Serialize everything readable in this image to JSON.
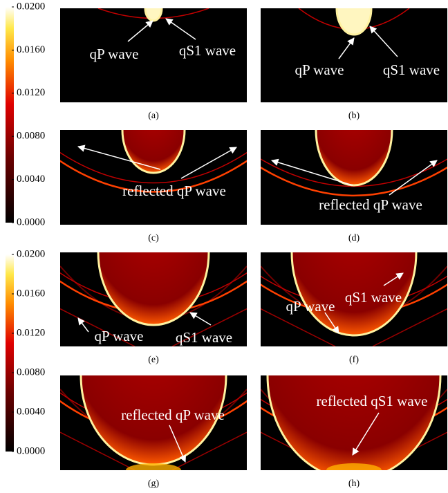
{
  "colorbars": [
    {
      "clim": [
        0,
        0.02
      ],
      "ticks": [
        {
          "value": 0.02,
          "label": "0.0200"
        },
        {
          "value": 0.016,
          "label": "0.0160"
        },
        {
          "value": 0.012,
          "label": "0.0120"
        },
        {
          "value": 0.008,
          "label": "0.0080"
        },
        {
          "value": 0.004,
          "label": "0.0040"
        },
        {
          "value": 0,
          "label": "0.0000"
        }
      ]
    },
    {
      "clim": [
        0,
        0.02
      ],
      "ticks": [
        {
          "value": 0.02,
          "label": "0.0200"
        },
        {
          "value": 0.016,
          "label": "0.0160"
        },
        {
          "value": 0.012,
          "label": "0.0120"
        },
        {
          "value": 0.008,
          "label": "0.0080"
        },
        {
          "value": 0.004,
          "label": "0.0040"
        },
        {
          "value": 0,
          "label": "0.0000"
        }
      ]
    }
  ],
  "panels": [
    {
      "caption": "(a)",
      "annotations": [
        "qP wave",
        "qS1 wave"
      ]
    },
    {
      "caption": "(b)",
      "annotations": [
        "qP wave",
        "qS1 wave"
      ]
    },
    {
      "caption": "(c)",
      "annotations": [
        "reflected qP wave"
      ]
    },
    {
      "caption": "(d)",
      "annotations": [
        "reflected qP wave"
      ]
    },
    {
      "caption": "(e)",
      "annotations": [
        "qP wave",
        "qS1 wave"
      ]
    },
    {
      "caption": "(f)",
      "annotations": [
        "qP wave",
        "qS1 wave"
      ]
    },
    {
      "caption": "(g)",
      "annotations": [
        "reflected qP wave"
      ]
    },
    {
      "caption": "(h)",
      "annotations": [
        "reflected qS1 wave"
      ]
    }
  ]
}
